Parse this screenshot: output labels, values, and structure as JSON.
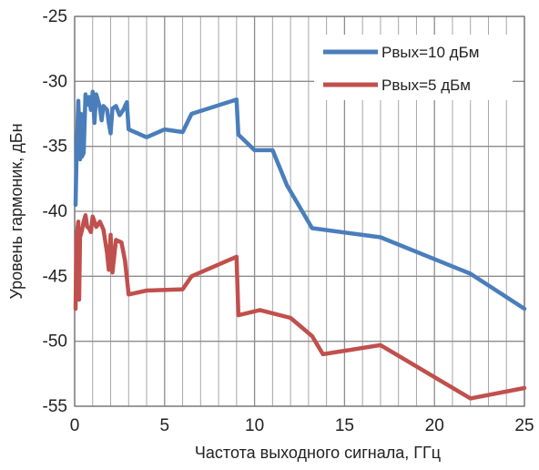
{
  "chart_data": {
    "type": "line",
    "xlabel": "Частота выходного сигнала, ГГц",
    "ylabel": "Уровень гармоник, дБн",
    "xlim": [
      0,
      25
    ],
    "ylim": [
      -55,
      -25
    ],
    "x_ticks": [
      0,
      5,
      10,
      15,
      20,
      25
    ],
    "y_ticks": [
      -25,
      -30,
      -35,
      -40,
      -45,
      -50,
      -55
    ],
    "x_minor_step": 1,
    "grid": true,
    "legend_position": "top-right",
    "series": [
      {
        "name": "Рвых=10 дБм",
        "color": "#4a7ebb",
        "points": [
          [
            0.05,
            -39.5
          ],
          [
            0.1,
            -36
          ],
          [
            0.2,
            -31.5
          ],
          [
            0.3,
            -36
          ],
          [
            0.35,
            -32.5
          ],
          [
            0.4,
            -35.8
          ],
          [
            0.5,
            -35.5
          ],
          [
            0.6,
            -31
          ],
          [
            0.7,
            -31.8
          ],
          [
            0.8,
            -31.2
          ],
          [
            0.9,
            -32.2
          ],
          [
            1.0,
            -30.8
          ],
          [
            1.1,
            -33.2
          ],
          [
            1.2,
            -31
          ],
          [
            1.4,
            -32
          ],
          [
            1.5,
            -33
          ],
          [
            1.6,
            -31.9
          ],
          [
            1.8,
            -32.2
          ],
          [
            1.9,
            -33.2
          ],
          [
            2.0,
            -34
          ],
          [
            2.1,
            -32.1
          ],
          [
            2.3,
            -31.9
          ],
          [
            2.5,
            -32.6
          ],
          [
            2.7,
            -32.2
          ],
          [
            2.9,
            -31.6
          ],
          [
            3.0,
            -33.7
          ],
          [
            4.0,
            -34.3
          ],
          [
            5.0,
            -33.7
          ],
          [
            6.0,
            -33.9
          ],
          [
            6.5,
            -32.5
          ],
          [
            9.0,
            -31.4
          ],
          [
            9.1,
            -34.1
          ],
          [
            10.0,
            -35.3
          ],
          [
            11.0,
            -35.3
          ],
          [
            11.8,
            -38
          ],
          [
            13.2,
            -41.3
          ],
          [
            17.0,
            -42
          ],
          [
            22.0,
            -44.8
          ],
          [
            25.0,
            -47.5
          ]
        ]
      },
      {
        "name": "Рвых=5 дБм",
        "color": "#c0504d",
        "points": [
          [
            0.05,
            -47.5
          ],
          [
            0.1,
            -42
          ],
          [
            0.2,
            -40.8
          ],
          [
            0.25,
            -46.8
          ],
          [
            0.3,
            -42
          ],
          [
            0.4,
            -41.5
          ],
          [
            0.5,
            -40.8
          ],
          [
            0.6,
            -40.3
          ],
          [
            0.7,
            -41.2
          ],
          [
            0.8,
            -41.3
          ],
          [
            0.9,
            -41.6
          ],
          [
            1.0,
            -40.4
          ],
          [
            1.2,
            -41.2
          ],
          [
            1.4,
            -40.8
          ],
          [
            1.6,
            -41.4
          ],
          [
            1.8,
            -43.2
          ],
          [
            1.9,
            -44.5
          ],
          [
            2.0,
            -41.8
          ],
          [
            2.1,
            -44.7
          ],
          [
            2.3,
            -42.2
          ],
          [
            2.6,
            -42.4
          ],
          [
            2.8,
            -43.8
          ],
          [
            3.0,
            -46.4
          ],
          [
            4.0,
            -46.1
          ],
          [
            6.0,
            -46
          ],
          [
            6.5,
            -45
          ],
          [
            9.0,
            -43.5
          ],
          [
            9.1,
            -48
          ],
          [
            10.3,
            -47.6
          ],
          [
            12.0,
            -48.2
          ],
          [
            13.2,
            -49.6
          ],
          [
            13.8,
            -51
          ],
          [
            17.0,
            -50.3
          ],
          [
            22.0,
            -54.4
          ],
          [
            25.0,
            -53.6
          ]
        ]
      }
    ]
  }
}
